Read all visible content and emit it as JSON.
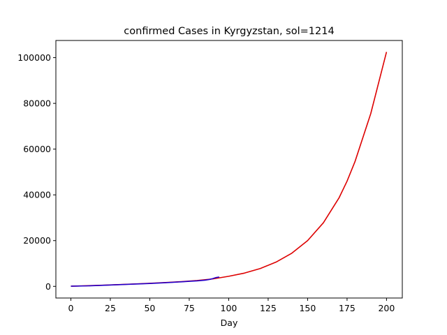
{
  "chart_data": {
    "type": "line",
    "title": "confirmed Cases in Kyrgyzstan, sol=1214",
    "xlabel": "Day",
    "ylabel": "",
    "xlim": [
      -9.5,
      210
    ],
    "ylim": [
      -5100,
      107500
    ],
    "xticks": [
      0,
      25,
      50,
      75,
      100,
      125,
      150,
      175,
      200
    ],
    "yticks": [
      0,
      20000,
      40000,
      60000,
      80000,
      100000
    ],
    "grid": false,
    "series": [
      {
        "color": "#dd0000",
        "x": [
          0,
          10,
          20,
          30,
          40,
          50,
          60,
          70,
          80,
          90,
          100,
          110,
          120,
          130,
          140,
          150,
          160,
          170,
          175,
          180,
          190,
          200
        ],
        "y": [
          70,
          270,
          500,
          760,
          1040,
          1340,
          1670,
          2060,
          2560,
          3250,
          4400,
          5800,
          7800,
          10600,
          14500,
          20000,
          27800,
          38800,
          46000,
          54500,
          75500,
          102500
        ]
      },
      {
        "color": "#2200cc",
        "x": [
          0,
          10,
          20,
          30,
          40,
          50,
          60,
          70,
          75,
          80,
          85,
          88,
          90,
          92,
          94
        ],
        "y": [
          80,
          200,
          450,
          720,
          980,
          1250,
          1580,
          1980,
          2200,
          2400,
          2700,
          3050,
          3400,
          3850,
          4100
        ]
      }
    ]
  }
}
